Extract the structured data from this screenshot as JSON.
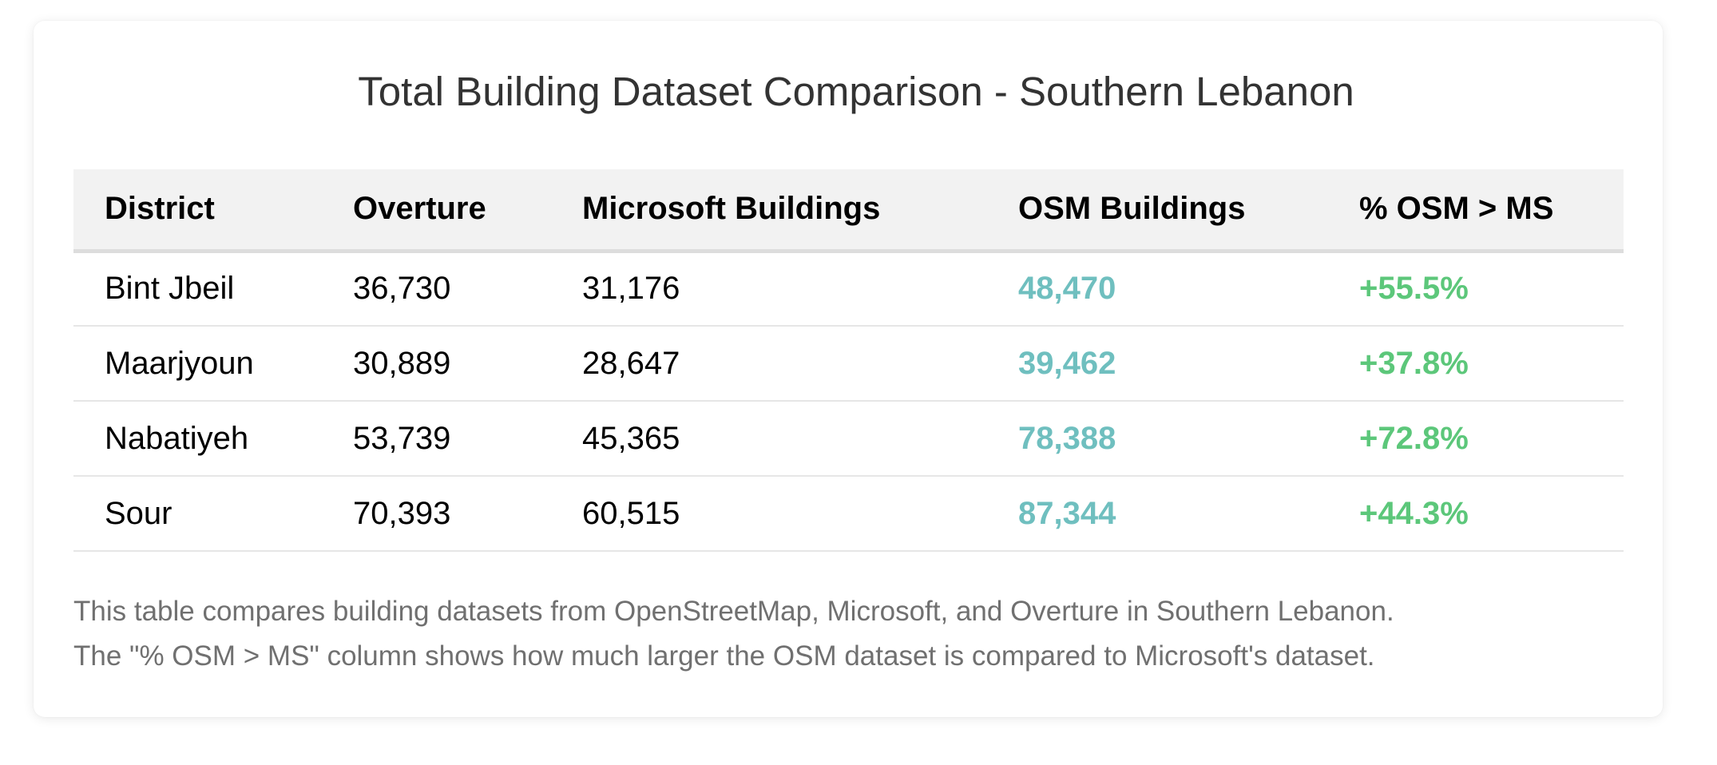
{
  "chart_data": {
    "type": "table",
    "title": "Total Building Dataset Comparison - Southern Lebanon",
    "columns": [
      "District",
      "Overture",
      "Microsoft Buildings",
      "OSM Buildings",
      "% OSM > MS"
    ],
    "rows": [
      {
        "district": "Bint Jbeil",
        "overture": "36,730",
        "microsoft": "31,176",
        "osm": "48,470",
        "pct": "+55.5%"
      },
      {
        "district": "Maarjyoun",
        "overture": "30,889",
        "microsoft": "28,647",
        "osm": "39,462",
        "pct": "+37.8%"
      },
      {
        "district": "Nabatiyeh",
        "overture": "53,739",
        "microsoft": "45,365",
        "osm": "78,388",
        "pct": "+72.8%"
      },
      {
        "district": "Sour",
        "overture": "70,393",
        "microsoft": "60,515",
        "osm": "87,344",
        "pct": "+44.3%"
      }
    ],
    "notes": [
      "This table compares building datasets from OpenStreetMap, Microsoft, and Overture in Southern Lebanon.",
      "The \"% OSM > MS\" column shows how much larger the OSM dataset is compared to Microsoft's dataset."
    ]
  },
  "colors": {
    "osm_value": "#6fbfbf",
    "percent_value": "#5cc77a",
    "header_bg": "#f2f2f2",
    "note_text": "#707070"
  }
}
